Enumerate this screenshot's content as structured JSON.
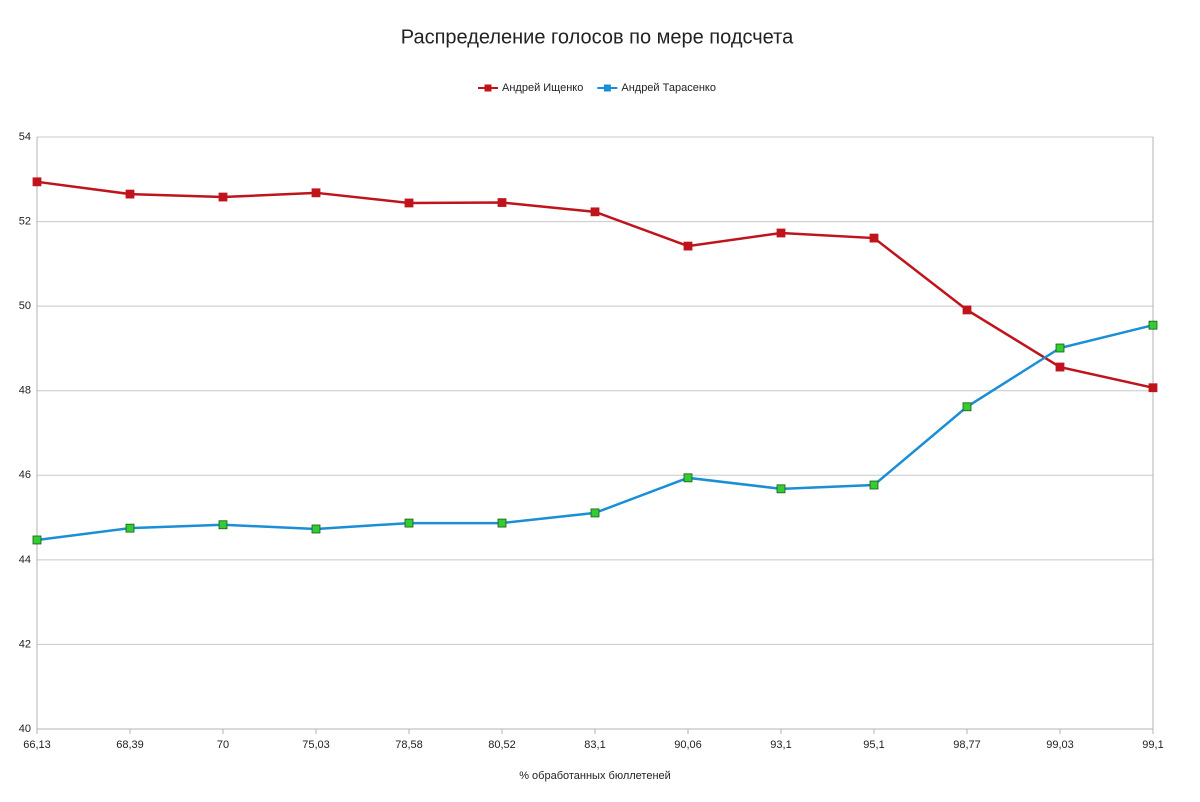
{
  "chart_data": {
    "type": "line",
    "title": "Распределение голосов по мере подсчета",
    "x_label": "% обработанных бюллетеней",
    "categories": [
      "66,13",
      "68,39",
      "70",
      "75,03",
      "78,58",
      "80,52",
      "83,1",
      "90,06",
      "93,1",
      "95,1",
      "98,77",
      "99,03",
      "99,1"
    ],
    "series": [
      {
        "name": "Андрей Ищенко",
        "color": "#c0141c",
        "marker_color": "#c0141c",
        "values": [
          52.94,
          52.65,
          52.58,
          52.68,
          52.44,
          52.45,
          52.23,
          51.42,
          51.73,
          51.61,
          49.91,
          48.56,
          48.07
        ]
      },
      {
        "name": "Андрей Тарасенко",
        "color": "#1a8fd6",
        "marker_color": "#33cc33",
        "values": [
          44.47,
          44.75,
          44.83,
          44.73,
          44.87,
          44.87,
          45.11,
          45.94,
          45.68,
          45.77,
          47.62,
          49.01,
          49.55
        ]
      }
    ],
    "ylim": [
      40,
      54
    ],
    "yticks": [
      40,
      42,
      44,
      46,
      48,
      50,
      52,
      54
    ],
    "grid": true,
    "legend": "top"
  }
}
